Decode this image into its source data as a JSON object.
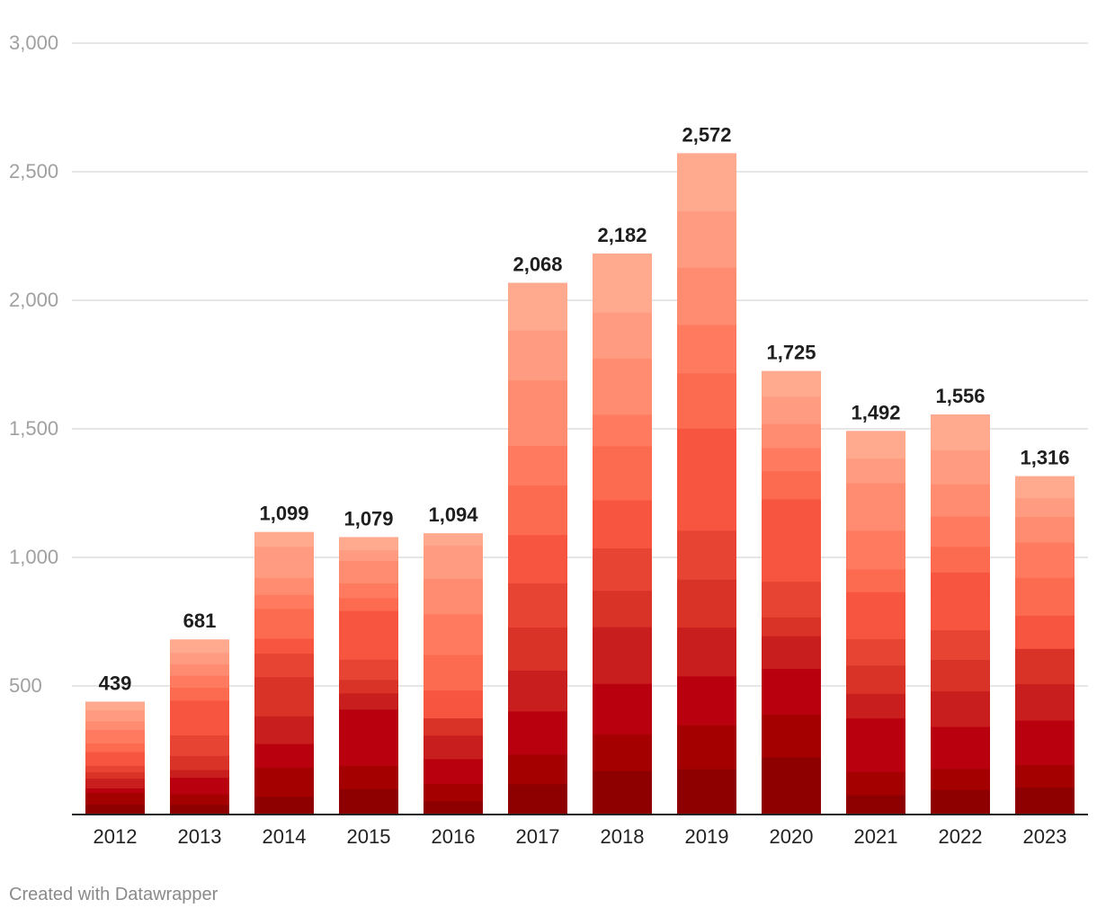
{
  "chart_data": {
    "type": "bar",
    "stacked": true,
    "categories": [
      "2012",
      "2013",
      "2014",
      "2015",
      "2016",
      "2017",
      "2018",
      "2019",
      "2020",
      "2021",
      "2022",
      "2023"
    ],
    "values": [
      439,
      681,
      1099,
      1079,
      1094,
      2068,
      2182,
      2572,
      1725,
      1492,
      1556,
      1316
    ],
    "value_labels": [
      "439",
      "681",
      "1,099",
      "1,079",
      "1,094",
      "2,068",
      "2,182",
      "2,572",
      "1,725",
      "1,492",
      "1,556",
      "1,316"
    ],
    "y_ticks": [
      500,
      1000,
      1500,
      2000,
      2500,
      3000
    ],
    "y_tick_labels": [
      "500",
      "1,000",
      "1,500",
      "2,000",
      "2,500",
      "3,000"
    ],
    "ylim": [
      0,
      3000
    ],
    "grid": true,
    "title": "",
    "xlabel": "",
    "ylabel": "",
    "palette": [
      "#8e0000",
      "#a50000",
      "#b8000f",
      "#c91e1e",
      "#d93328",
      "#e84433",
      "#f7553f",
      "#fc6a50",
      "#ff7a5e",
      "#ff8c70",
      "#ff9b80",
      "#ffa98e"
    ],
    "segments": [
      [
        42,
        26,
        22,
        18,
        18,
        22,
        26,
        26,
        26,
        30,
        35,
        30,
        25,
        35,
        25,
        20,
        33
      ],
      [
        40,
        40,
        65,
        30,
        55,
        80,
        70,
        65,
        50,
        47,
        44,
        44,
        51
      ],
      [
        75,
        45,
        73,
        97,
        113,
        82,
        78,
        96,
        61,
        65,
        57,
        57,
        69,
        72,
        55,
        59
      ],
      [
        110,
        98,
        145,
        95,
        69,
        57,
        86,
        130,
        77,
        55,
        62,
        56,
        40,
        45,
        54
      ],
      [
        65,
        80,
        115,
        110,
        80,
        130,
        165,
        190,
        165,
        155,
        55
      ],
      [
        120,
        115,
        168,
        159,
        167,
        172,
        188,
        192,
        155,
        254,
        194,
        184
      ],
      [
        171,
        143,
        196,
        220,
        142,
        165,
        187,
        210,
        123,
        218,
        179,
        228
      ],
      [
        199,
        190,
        213,
        212,
        208,
        213,
        218,
        225,
        240,
        210,
        249,
        245,
        250
      ],
      [
        250,
        186,
        199,
        142,
        82,
        155,
        177,
        181,
        122,
        101,
        105,
        118,
        110
      ],
      [
        93,
        108,
        120,
        130,
        115,
        132,
        123,
        116,
        104,
        106,
        181,
        106,
        116,
        115,
        127
      ],
      [
        110,
        92,
        185,
        156,
        138,
        130,
        158,
        95,
        113,
        133,
        141,
        150,
        155
      ],
      [
        116,
        93,
        186,
        153,
        147,
        139,
        158,
        148,
        107,
        79,
        90
      ]
    ]
  },
  "footer": {
    "credit": "Created with Datawrapper"
  }
}
